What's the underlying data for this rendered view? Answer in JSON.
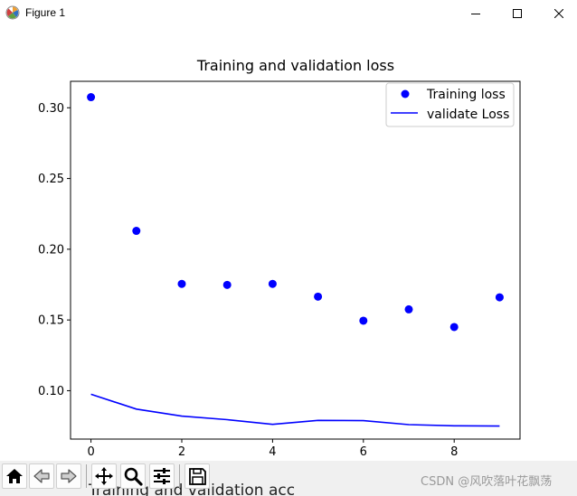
{
  "window": {
    "title": "Figure 1",
    "controls": {
      "minimize": "minimize",
      "maximize": "maximize",
      "close": "close"
    }
  },
  "chart_data": {
    "type": "scatter",
    "title": "Training and validation loss",
    "xlabel": "",
    "ylabel": "",
    "xlim": [
      -0.45,
      9.45
    ],
    "ylim": [
      0.0658,
      0.3187
    ],
    "x_ticks": [
      0,
      2,
      4,
      6,
      8
    ],
    "y_ticks": [
      0.1,
      0.15,
      0.2,
      0.25,
      0.3
    ],
    "y_tick_labels": [
      "0.10",
      "0.15",
      "0.20",
      "0.25",
      "0.30"
    ],
    "grid": false,
    "legend_position": "upper right",
    "series": [
      {
        "name": "Training loss",
        "style": "markers",
        "color": "#0000ff",
        "x": [
          0,
          1,
          2,
          3,
          4,
          5,
          6,
          7,
          8,
          9
        ],
        "y": [
          0.3075,
          0.213,
          0.1755,
          0.1748,
          0.1755,
          0.1665,
          0.1495,
          0.1575,
          0.145,
          0.166
        ]
      },
      {
        "name": "validate Loss",
        "style": "line",
        "color": "#0000ff",
        "x": [
          0,
          1,
          2,
          3,
          4,
          5,
          6,
          7,
          8,
          9
        ],
        "y": [
          0.0975,
          0.087,
          0.082,
          0.0795,
          0.0762,
          0.079,
          0.0788,
          0.076,
          0.0752,
          0.075
        ]
      }
    ]
  },
  "toolbar": {
    "buttons": [
      "home-icon",
      "back-arrow-icon",
      "forward-arrow-icon",
      "pan-icon",
      "zoom-icon",
      "configure-subplots-icon",
      "save-icon"
    ],
    "partial_text_behind": "Training and validation acc",
    "watermark": "CSDN @风吹落叶花飘荡"
  }
}
